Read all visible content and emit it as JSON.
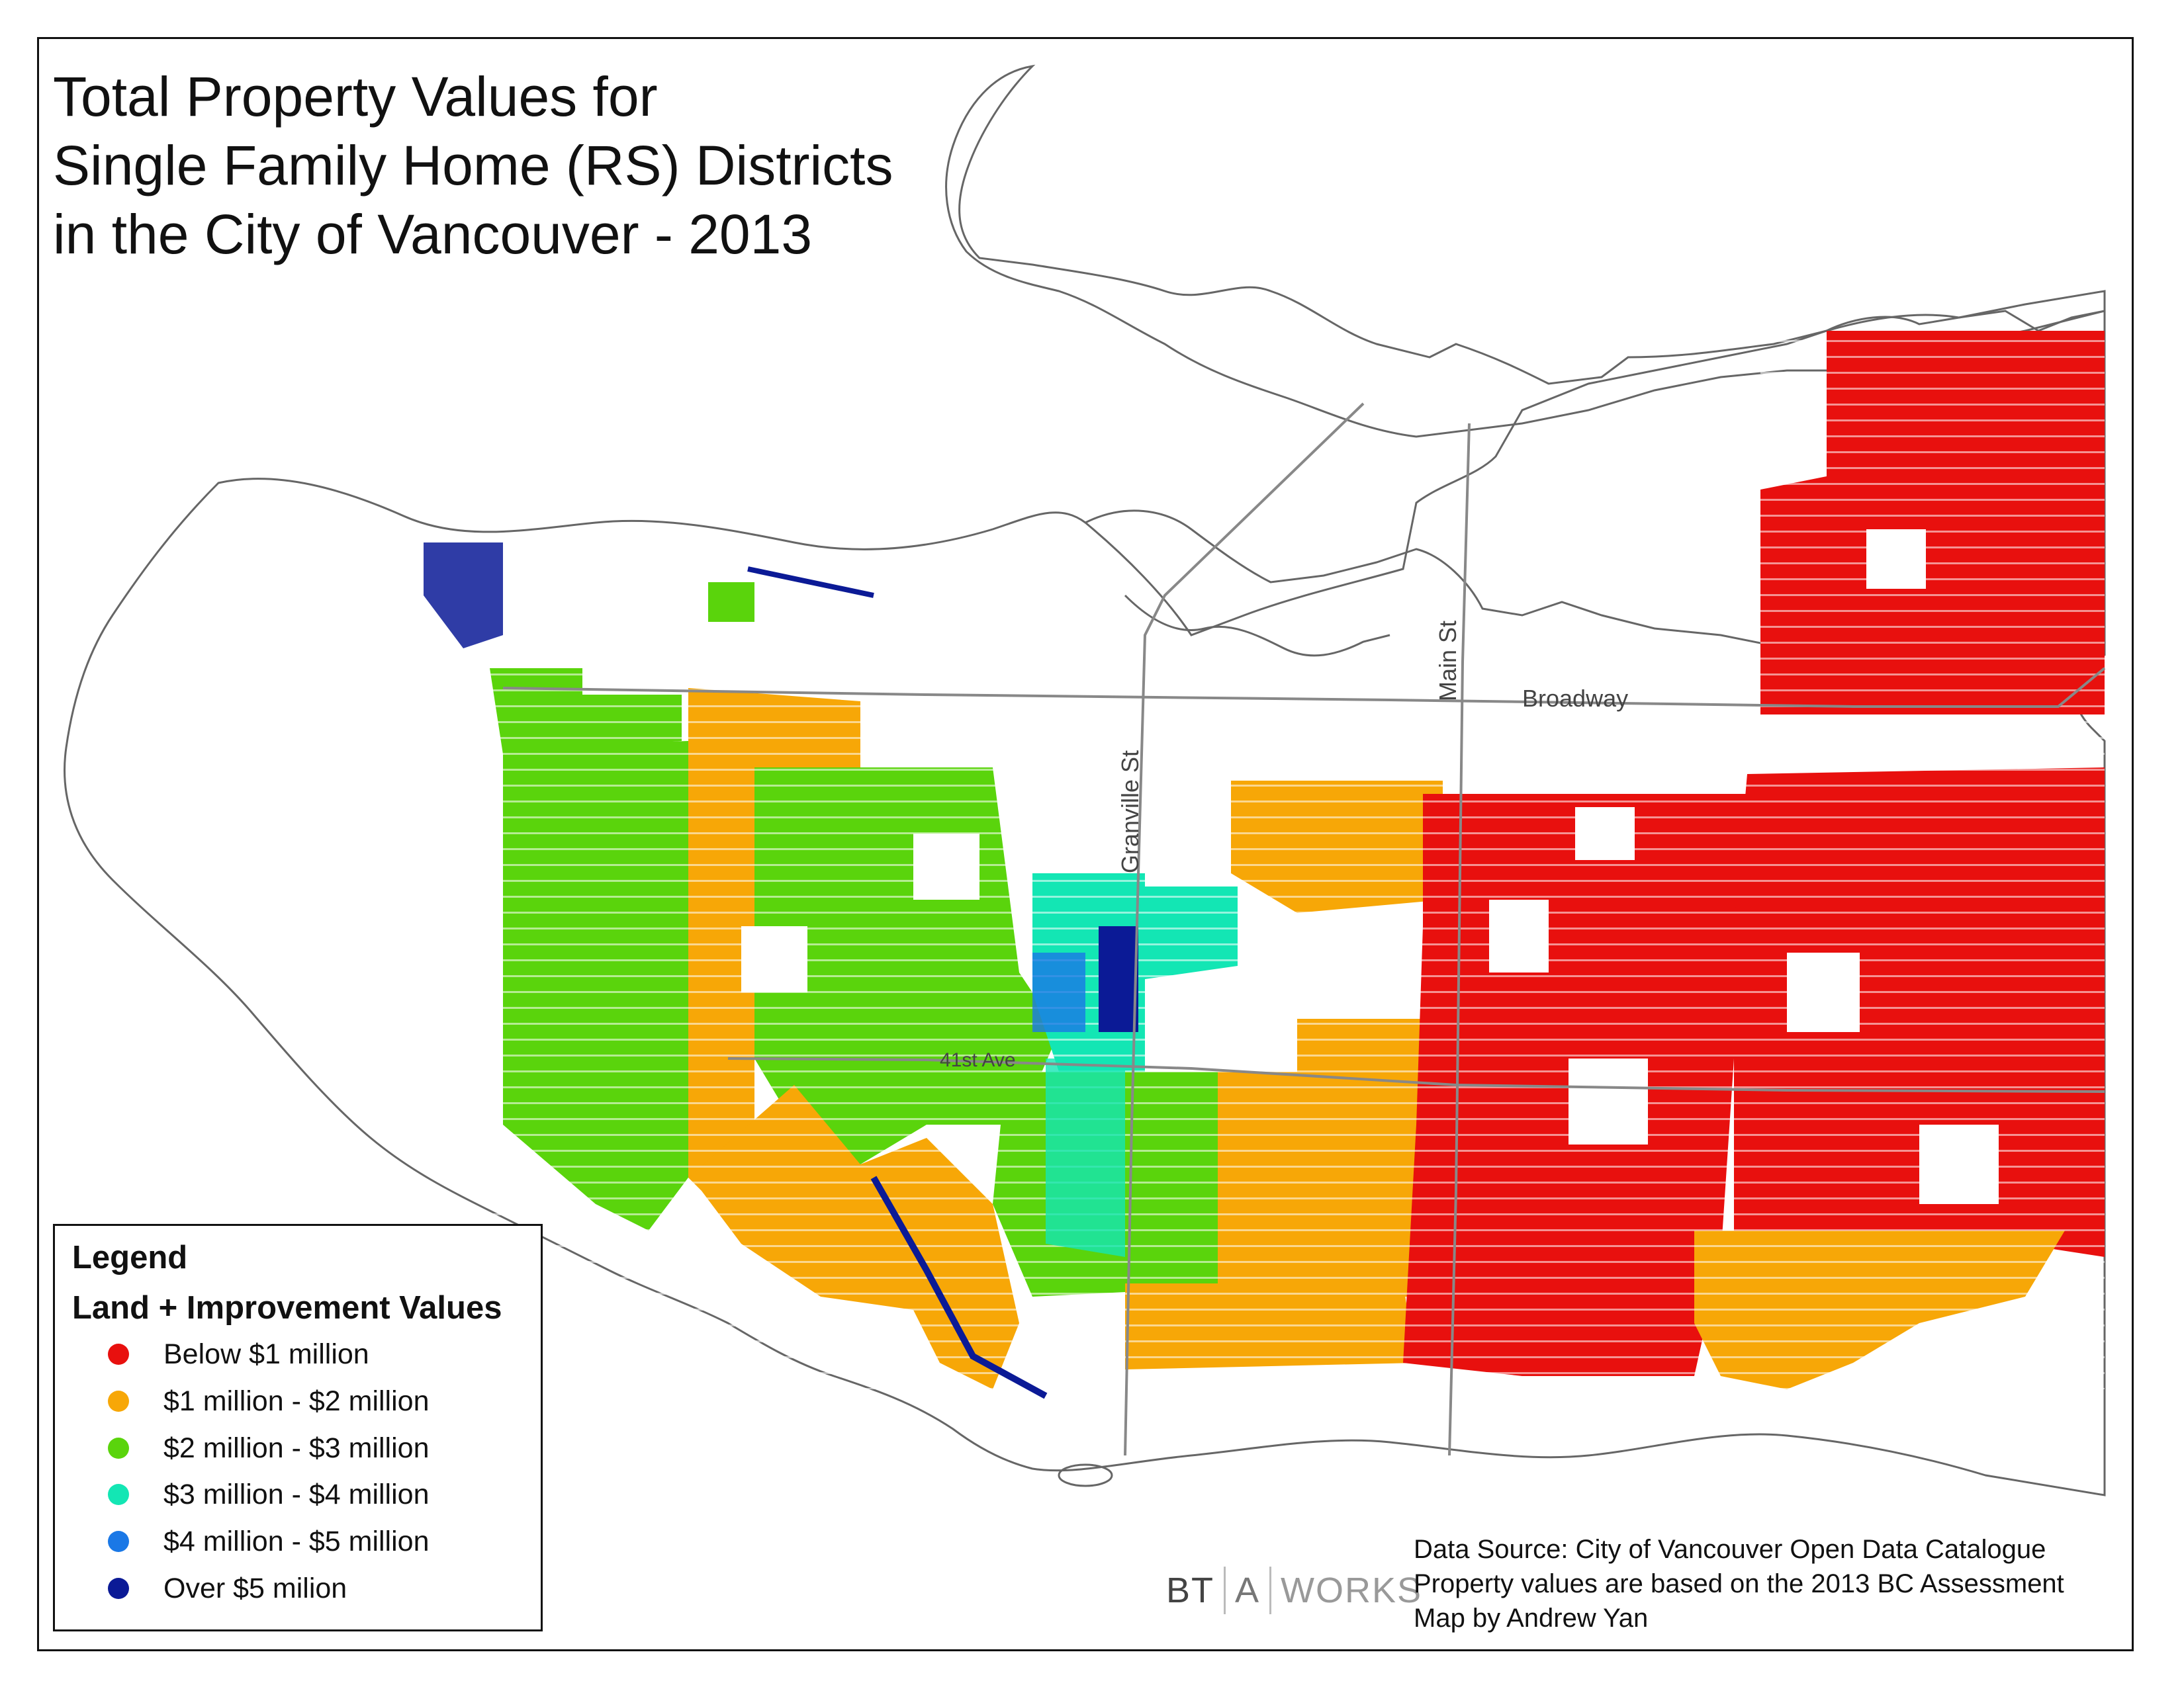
{
  "title": {
    "line1": "Total Property Values for",
    "line2": "Single Family Home (RS) Districts",
    "line3": "in the City of Vancouver - 2013"
  },
  "streets": {
    "broadway": "Broadway",
    "main": "Main St",
    "granville": "Granville St",
    "ave41": "41st Ave"
  },
  "legend": {
    "heading": "Legend",
    "subheading": "Land + Improvement Values",
    "items": [
      {
        "label": "Below $1 million",
        "color": "#e8100e"
      },
      {
        "label": "$1 million - $2 million",
        "color": "#f7a707"
      },
      {
        "label": "$2 million - $3 million",
        "color": "#5ad40c"
      },
      {
        "label": "$3 million - $4 million",
        "color": "#13e6b4"
      },
      {
        "label": "$4 million - $5 million",
        "color": "#1a78e6"
      },
      {
        "label": "Over $5 milion",
        "color": "#0b1a96"
      }
    ]
  },
  "logo": {
    "part1": "BT",
    "part2": "A",
    "part3": "WORKS"
  },
  "source": {
    "line1": "Data Source: City of Vancouver Open Data Catalogue",
    "line2": "Property values are based on the 2013 BC Assessment",
    "line3": "Map by Andrew Yan"
  }
}
